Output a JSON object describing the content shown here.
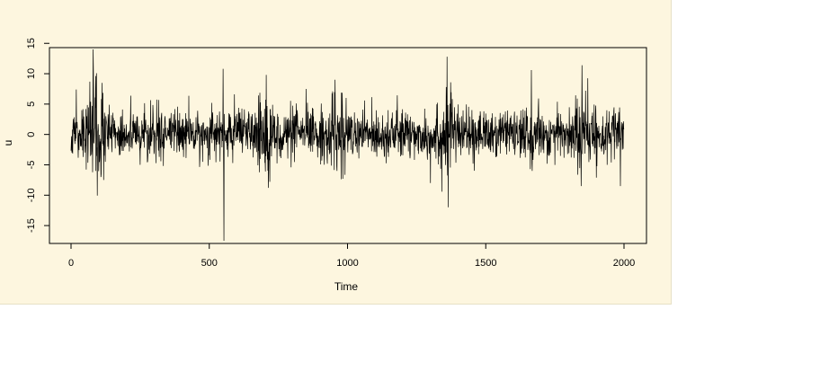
{
  "window": {
    "background": "#fdf6df"
  },
  "chart_data": {
    "type": "line",
    "title": "",
    "xlabel": "Time",
    "ylabel": "u",
    "xlim": [
      0,
      2000
    ],
    "ylim": [
      -17.5,
      14
    ],
    "x_ticks": [
      0,
      500,
      1000,
      1500,
      2000
    ],
    "y_ticks": [
      -15,
      -10,
      -5,
      0,
      5,
      10,
      15
    ],
    "x_tick_labels": [
      "0",
      "500",
      "1000",
      "1500",
      "2000"
    ],
    "y_tick_labels": [
      "-15",
      "-10",
      "-5",
      "0",
      "5",
      "10",
      "15"
    ],
    "series": [
      {
        "color": "#000000",
        "n": 2001,
        "base_amplitude": 2.0,
        "spikes": [
          {
            "x": 80,
            "y": 14
          },
          {
            "x": 90,
            "y": -6
          },
          {
            "x": 112,
            "y": 8.5
          },
          {
            "x": 118,
            "y": -7.5
          },
          {
            "x": 550,
            "y": 10.8
          },
          {
            "x": 553,
            "y": -17.5
          },
          {
            "x": 706,
            "y": 9.8
          },
          {
            "x": 714,
            "y": -8.8
          },
          {
            "x": 850,
            "y": 7.5
          },
          {
            "x": 955,
            "y": 9
          },
          {
            "x": 962,
            "y": -6
          },
          {
            "x": 1360,
            "y": 12.8
          },
          {
            "x": 1364,
            "y": -12
          },
          {
            "x": 1300,
            "y": -8
          },
          {
            "x": 1665,
            "y": 10.6
          },
          {
            "x": 1668,
            "y": -6
          },
          {
            "x": 1848,
            "y": 11.4
          },
          {
            "x": 1845,
            "y": -8.5
          },
          {
            "x": 1987,
            "y": -8.5
          }
        ],
        "volatility_clusters": [
          {
            "center": 90,
            "width": 40,
            "scale": 2.2
          },
          {
            "center": 705,
            "width": 25,
            "scale": 2.0
          },
          {
            "center": 960,
            "width": 30,
            "scale": 1.8
          },
          {
            "center": 1362,
            "width": 25,
            "scale": 2.2
          },
          {
            "center": 1848,
            "width": 40,
            "scale": 1.7
          }
        ]
      }
    ]
  }
}
